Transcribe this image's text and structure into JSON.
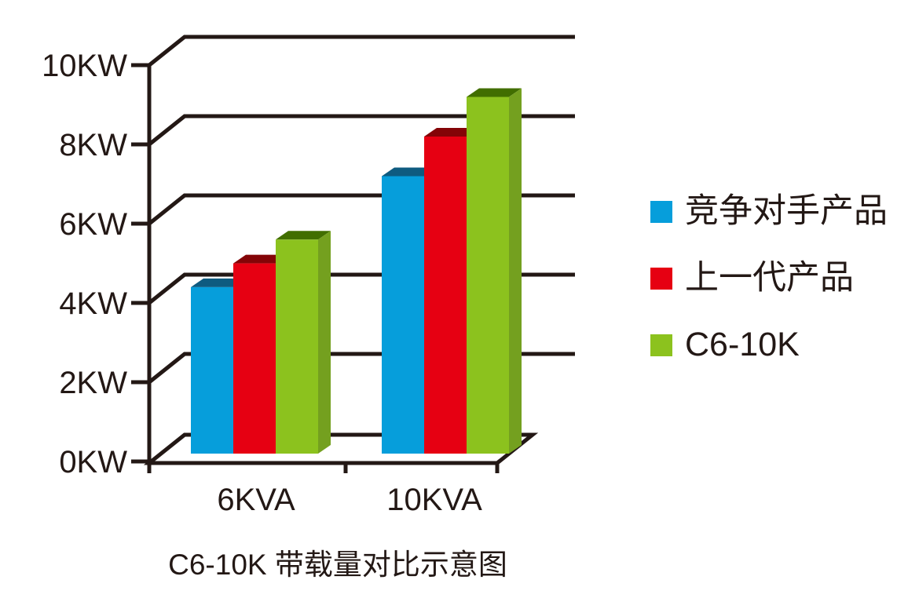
{
  "palette": {
    "ink": "#231815",
    "background": "#ffffff"
  },
  "chart_data": {
    "type": "bar",
    "projection": "pseudo-3d",
    "title": "C6-10K 带载量对比示意图",
    "categories": [
      "6KVA",
      "10KVA"
    ],
    "series": [
      {
        "key": "competitor",
        "name": "竞争对手产品",
        "values": [
          4.2,
          7.0
        ],
        "color": "#069EDB",
        "color_top": "#0E5B80"
      },
      {
        "key": "previous-gen",
        "name": "上一代产品",
        "values": [
          4.8,
          8.0
        ],
        "color": "#E60012",
        "color_top": "#840407"
      },
      {
        "key": "c6-10k",
        "name": "C6-10K",
        "values": [
          5.4,
          9.0
        ],
        "color": "#8CC21E",
        "color_top": "#416E00",
        "color_side": "#74A01F"
      }
    ],
    "ylim": [
      0,
      10
    ],
    "ytick_values": [
      0,
      2,
      4,
      6,
      8,
      10
    ],
    "ytick_labels": [
      "0KW",
      "2KW",
      "4KW",
      "6KW",
      "8KW",
      "10KW"
    ],
    "unit": "KW",
    "grid": true,
    "legend_position": "right"
  }
}
